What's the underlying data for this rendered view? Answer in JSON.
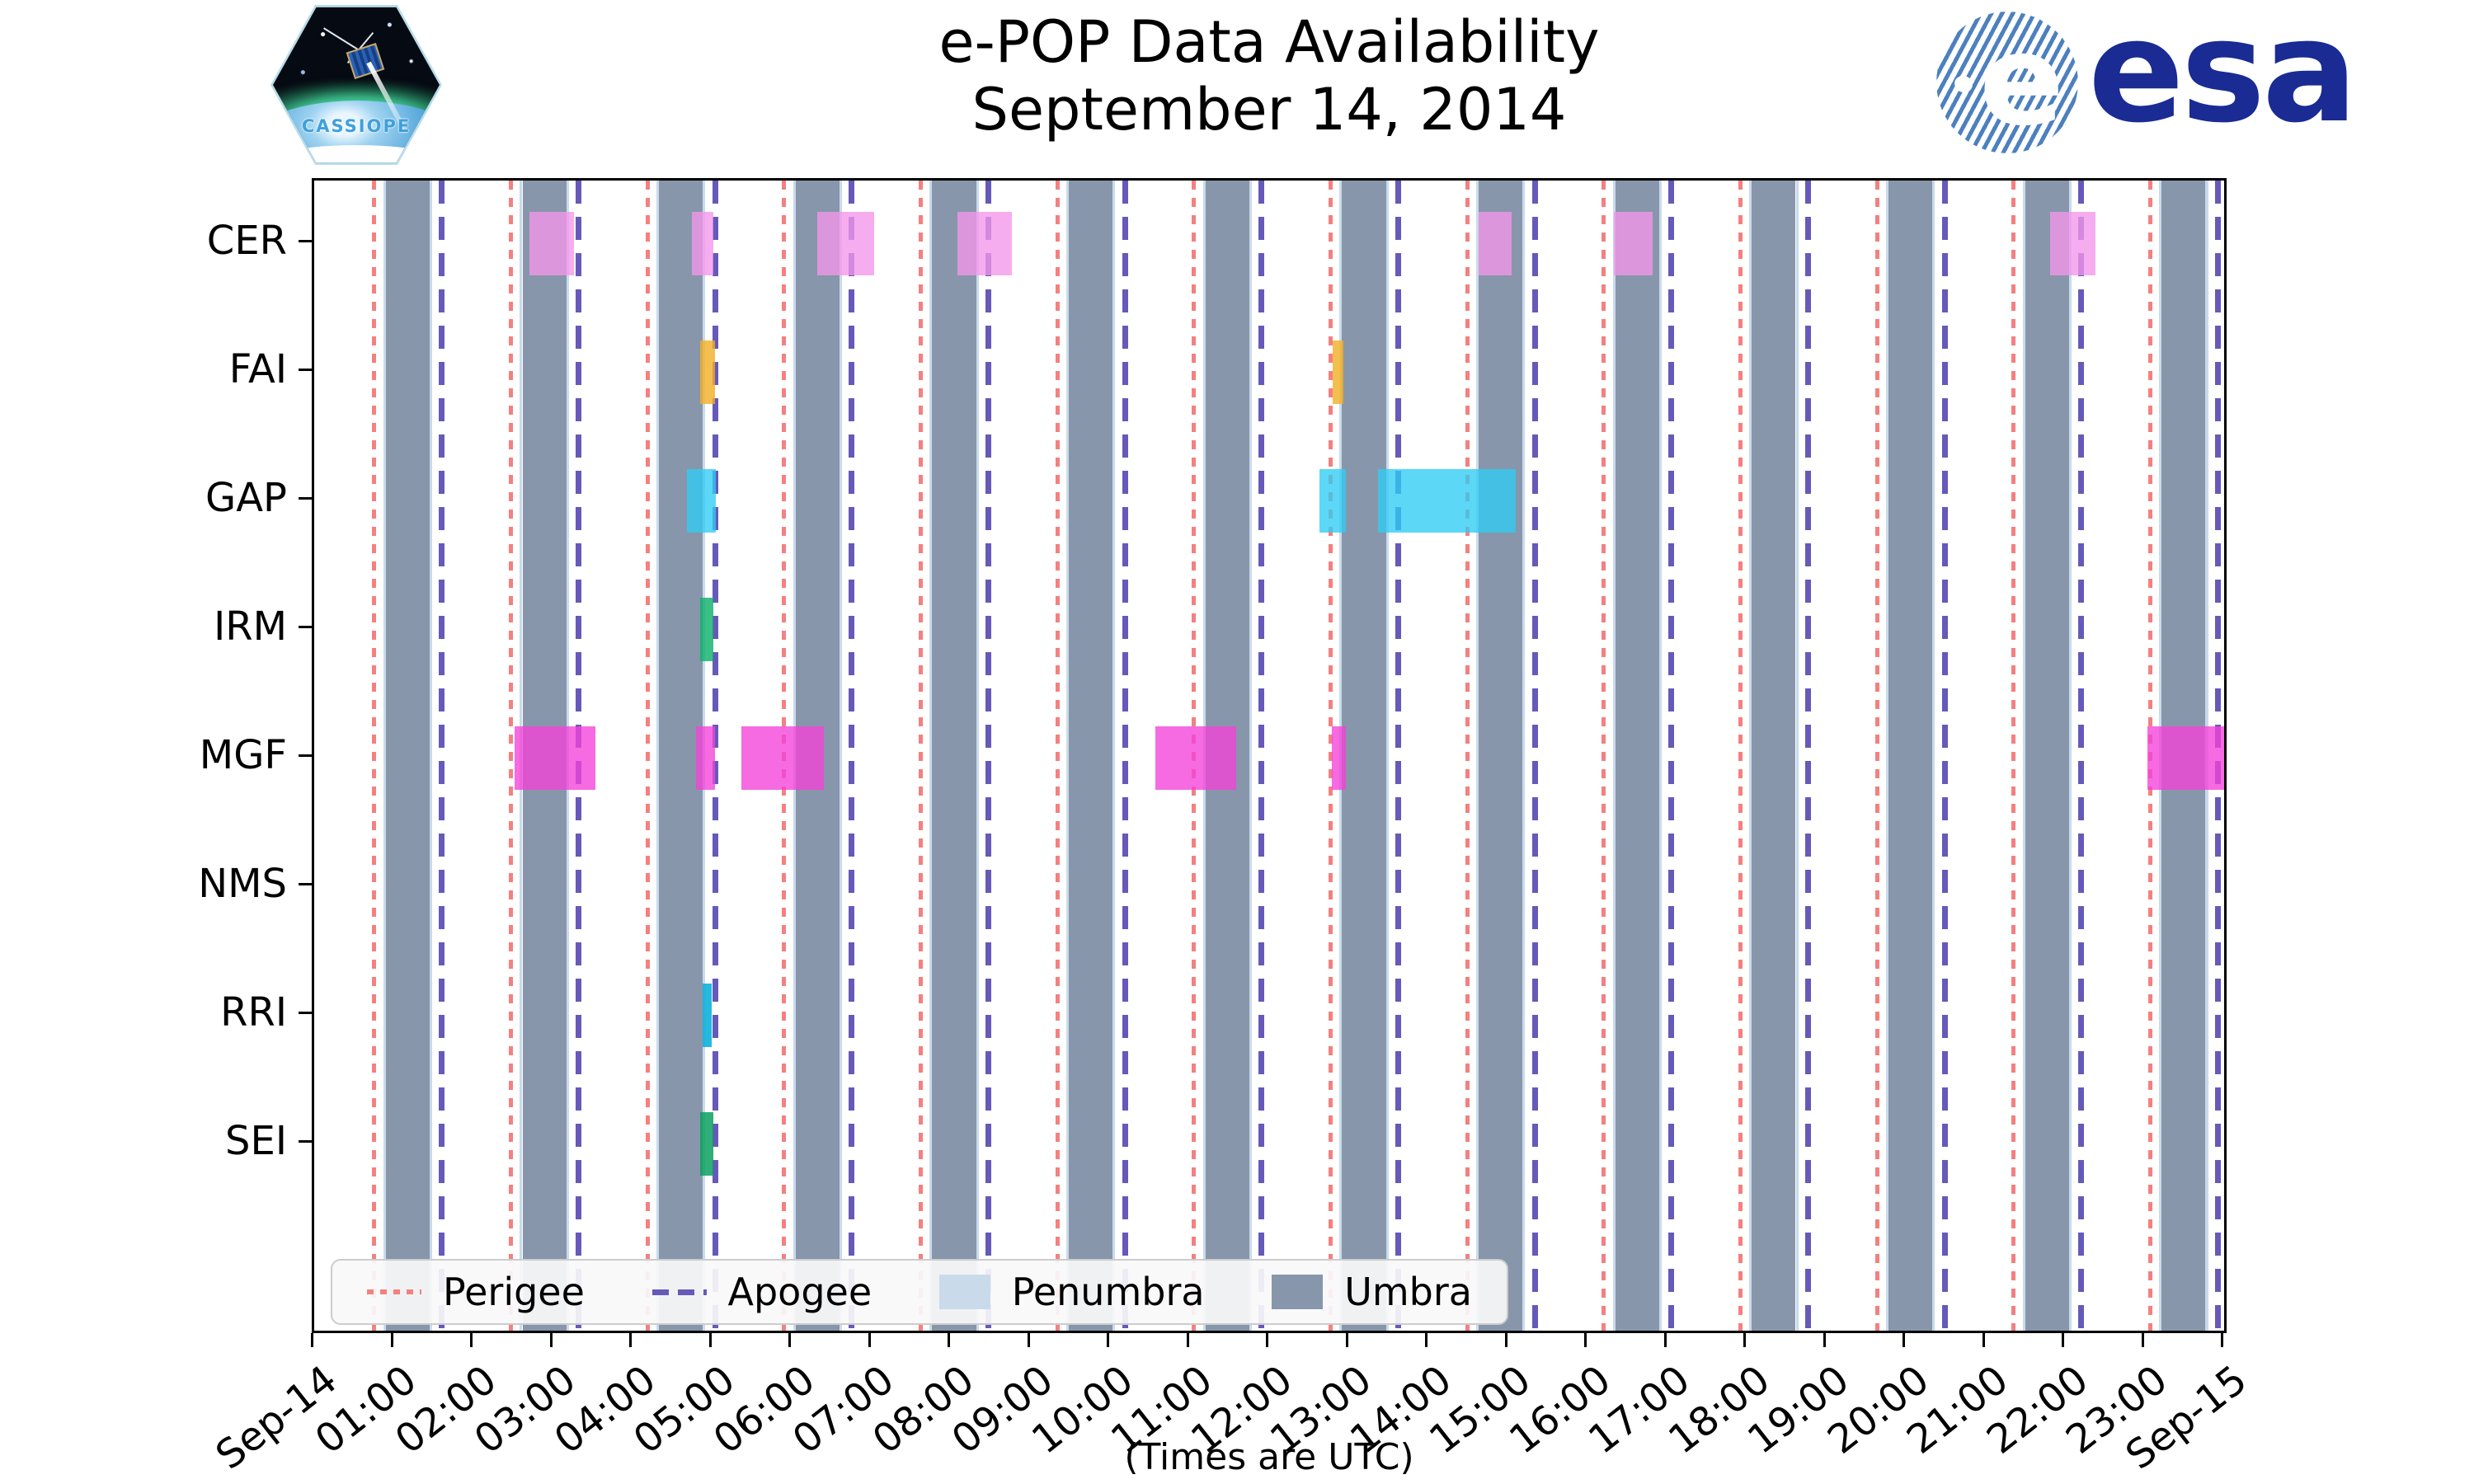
{
  "header": {
    "title": "e-POP Data Availability",
    "subtitle": "September 14, 2014"
  },
  "logos": {
    "cassiope_text": "CASSIOPE",
    "esa_text": "esa"
  },
  "chart_data": {
    "type": "timeline",
    "title": "e-POP Data Availability",
    "subtitle": "September 14, 2014",
    "x_note": "(Times are UTC)",
    "x_range_hours": [
      0,
      24
    ],
    "x_tick_labels": [
      "Sep-14",
      "01:00",
      "02:00",
      "03:00",
      "04:00",
      "05:00",
      "06:00",
      "07:00",
      "08:00",
      "09:00",
      "10:00",
      "11:00",
      "12:00",
      "13:00",
      "14:00",
      "15:00",
      "16:00",
      "17:00",
      "18:00",
      "19:00",
      "20:00",
      "21:00",
      "22:00",
      "23:00",
      "Sep-15"
    ],
    "rows": [
      "CER",
      "FAI",
      "GAP",
      "IRM",
      "MGF",
      "NMS",
      "RRI",
      "SEI"
    ],
    "series": [
      {
        "name": "CER",
        "color": "rgba(244,150,235,0.78)",
        "intervals": [
          [
            "02:42",
            "03:16"
          ],
          [
            "04:45",
            "04:51"
          ],
          [
            "04:51",
            "05:01"
          ],
          [
            "06:19",
            "06:24"
          ],
          [
            "06:24",
            "07:02"
          ],
          [
            "08:05",
            "08:10"
          ],
          [
            "08:10",
            "08:46"
          ],
          [
            "14:38",
            "15:03"
          ],
          [
            "16:20",
            "16:49"
          ],
          [
            "21:49",
            "22:07"
          ],
          [
            "22:07",
            "22:23"
          ]
        ]
      },
      {
        "name": "FAI",
        "color": "rgba(243,175,36,0.80)",
        "intervals": [
          [
            "04:51",
            "05:02"
          ],
          [
            "12:48",
            "12:56"
          ]
        ]
      },
      {
        "name": "GAP",
        "color": "rgba(47,204,244,0.78)",
        "intervals": [
          [
            "04:41",
            "05:03"
          ],
          [
            "12:38",
            "12:58"
          ],
          [
            "13:22",
            "15:06"
          ]
        ]
      },
      {
        "name": "IRM",
        "color": "rgba(16,177,108,0.82)",
        "intervals": [
          [
            "04:51",
            "05:01"
          ]
        ]
      },
      {
        "name": "MGF",
        "color": "rgba(243,65,216,0.78)",
        "intervals": [
          [
            "02:31",
            "03:32"
          ],
          [
            "04:48",
            "05:02"
          ],
          [
            "05:22",
            "06:24"
          ],
          [
            "10:34",
            "11:35"
          ],
          [
            "12:47",
            "12:58"
          ],
          [
            "23:02",
            "24:00"
          ]
        ]
      },
      {
        "name": "NMS",
        "color": "rgba(150,150,150,0.8)",
        "intervals": []
      },
      {
        "name": "RRI",
        "color": "rgba(0,173,219,0.85)",
        "intervals": [
          [
            "04:53",
            "05:00"
          ]
        ]
      },
      {
        "name": "SEI",
        "color": "rgba(10,160,95,0.85)",
        "intervals": [
          [
            "04:51",
            "05:01"
          ]
        ]
      }
    ],
    "events": {
      "perigee": {
        "style": "dotted",
        "color": "#f48080",
        "times": [
          "00:45",
          "02:28",
          "04:11",
          "05:54",
          "07:37",
          "09:20",
          "11:03",
          "12:46",
          "14:29",
          "16:12",
          "17:55",
          "19:38",
          "21:21",
          "23:04"
        ]
      },
      "apogee": {
        "style": "dashed",
        "color": "#655ab9",
        "times": [
          "01:36",
          "03:19",
          "05:02",
          "06:45",
          "08:28",
          "10:11",
          "11:54",
          "13:37",
          "15:20",
          "17:03",
          "18:46",
          "20:29",
          "22:12",
          "23:55"
        ]
      }
    },
    "shading": {
      "umbra": {
        "color": "#8796aa",
        "intervals": [
          [
            "00:54",
            "01:27"
          ],
          [
            "02:37",
            "03:10"
          ],
          [
            "04:20",
            "04:53"
          ],
          [
            "06:03",
            "06:36"
          ],
          [
            "07:46",
            "08:19"
          ],
          [
            "09:29",
            "10:02"
          ],
          [
            "11:12",
            "11:45"
          ],
          [
            "12:55",
            "13:28"
          ],
          [
            "14:38",
            "15:11"
          ],
          [
            "16:21",
            "16:54"
          ],
          [
            "18:04",
            "18:37"
          ],
          [
            "19:47",
            "20:20"
          ],
          [
            "21:30",
            "22:03"
          ],
          [
            "23:13",
            "23:46"
          ]
        ]
      },
      "penumbra": {
        "color": "#c9daeb",
        "edge_minutes": 2
      }
    },
    "legend": {
      "position": "lower left",
      "items": [
        {
          "label": "Perigee",
          "swatch": "dotted-line",
          "color": "#f48080"
        },
        {
          "label": "Apogee",
          "swatch": "dashed-line",
          "color": "#655ab9"
        },
        {
          "label": "Penumbra",
          "swatch": "patch",
          "color": "#c9daeb"
        },
        {
          "label": "Umbra",
          "swatch": "patch",
          "color": "#8796aa"
        }
      ]
    }
  }
}
